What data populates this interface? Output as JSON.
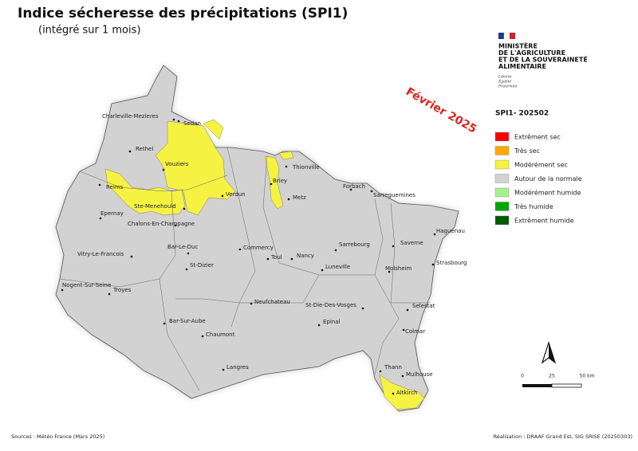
{
  "header": {
    "title": "Indice sécheresse des précipitations (SPI1)",
    "subtitle": "(intégré sur 1 mois)",
    "period": "Février 2025"
  },
  "ministry": {
    "lines": [
      "MINISTÈRE",
      "DE L'AGRICULTURE",
      "ET DE LA SOUVERAINETÉ",
      "ALIMENTAIRE"
    ],
    "motto": [
      "Liberté",
      "Égalité",
      "Fraternité"
    ]
  },
  "legend": {
    "title": "SPI1- 202502",
    "items": [
      {
        "label": "Extrêment sec",
        "color": "#ff0000"
      },
      {
        "label": "Très sec",
        "color": "#ffaa00"
      },
      {
        "label": "Modérément sec",
        "color": "#f5f242"
      },
      {
        "label": "Autour de la normale",
        "color": "#d2d2d2"
      },
      {
        "label": "Modérément humide",
        "color": "#a8f08c"
      },
      {
        "label": "Très humide",
        "color": "#00a600"
      },
      {
        "label": "Extrêment humide",
        "color": "#005a00"
      }
    ]
  },
  "scale_bar": {
    "labels": [
      "0",
      "25",
      "50 km"
    ]
  },
  "cities": [
    "Charleville-Mezieres",
    "Sedan",
    "Rethel",
    "Vouziers",
    "Reims",
    "Ste-Menehould",
    "Verdun",
    "Epernay",
    "Chalons-En-Champagne",
    "Thionville",
    "Briey",
    "Metz",
    "Forbach",
    "Sarreguemines",
    "Haguenau",
    "Saverne",
    "Strasbourg",
    "Sarrebourg",
    "Molsheim",
    "Bar-Le-Duc",
    "Commercy",
    "Toul",
    "Nancy",
    "Luneville",
    "Vitry-Le-Francois",
    "St-Dizier",
    "Nogent-Sur-Seine",
    "Troyes",
    "Neufchateau",
    "St-Die-Des-Vosges",
    "Selestat",
    "Bar-Sur-Aube",
    "Epinal",
    "Colmar",
    "Chaumont",
    "Langres",
    "Thann",
    "Mulhouse",
    "Altkirch"
  ],
  "footer": {
    "sources": "Sources : Météo France (Mars 2025)",
    "credits": "Réalisation : DRAAF Grand Est, SIG SRISE (20250303)"
  }
}
